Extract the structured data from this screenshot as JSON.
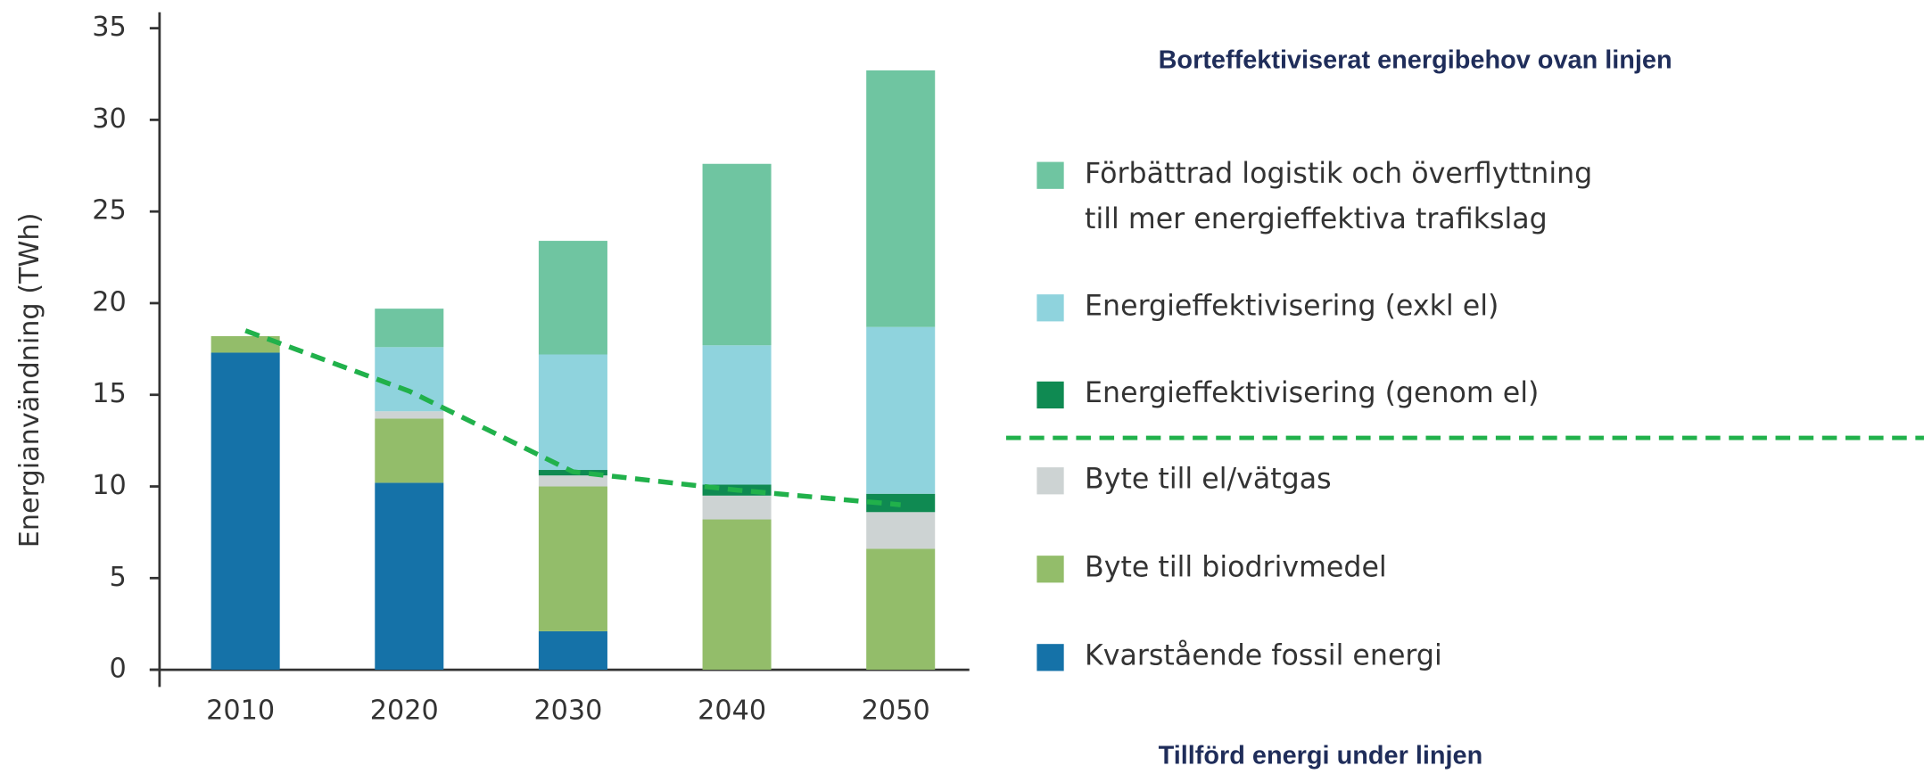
{
  "chart_data": {
    "type": "bar",
    "stacked": true,
    "heading_top": "Borteffektiviserat energibehov ovan linjen",
    "heading_bottom": "Tillförd energi under linjen",
    "y_label": "Energianvändning (TWh)",
    "categories": [
      "2010",
      "2020",
      "2030",
      "2040",
      "2050"
    ],
    "ylim": [
      0,
      35
    ],
    "yticks": [
      0,
      5,
      10,
      15,
      20,
      25,
      30,
      35
    ],
    "series": [
      {
        "name": "Kvarstående fossil energi",
        "color": "#1572a8",
        "values": [
          17.3,
          10.2,
          2.1,
          0,
          0
        ]
      },
      {
        "name": "Byte till biodrivmedel",
        "color": "#93bd6a",
        "values": [
          0.9,
          3.5,
          7.9,
          8.2,
          6.6
        ]
      },
      {
        "name": "Byte till el/vätgas",
        "color": "#cdd3d3",
        "values": [
          0,
          0.4,
          0.6,
          1.3,
          2.0
        ]
      },
      {
        "name": "Energieffektivisering (genom el)",
        "color": "#0f8a52",
        "values": [
          0,
          0,
          0.3,
          0.6,
          1.0
        ]
      },
      {
        "name": "Energieffektivisering (exkl el)",
        "color": "#8fd3dd",
        "values": [
          0,
          3.5,
          6.3,
          7.6,
          9.1
        ]
      },
      {
        "name": "Förbättrad logistik och överflyttning till mer energieffektiva trafikslag",
        "color": "#6fc5a1",
        "values": [
          0,
          2.1,
          6.2,
          9.9,
          14.0
        ]
      }
    ],
    "threshold_line": {
      "color": "#21b14b",
      "values": [
        18.5,
        15.2,
        10.8,
        9.8,
        9.0
      ]
    }
  }
}
